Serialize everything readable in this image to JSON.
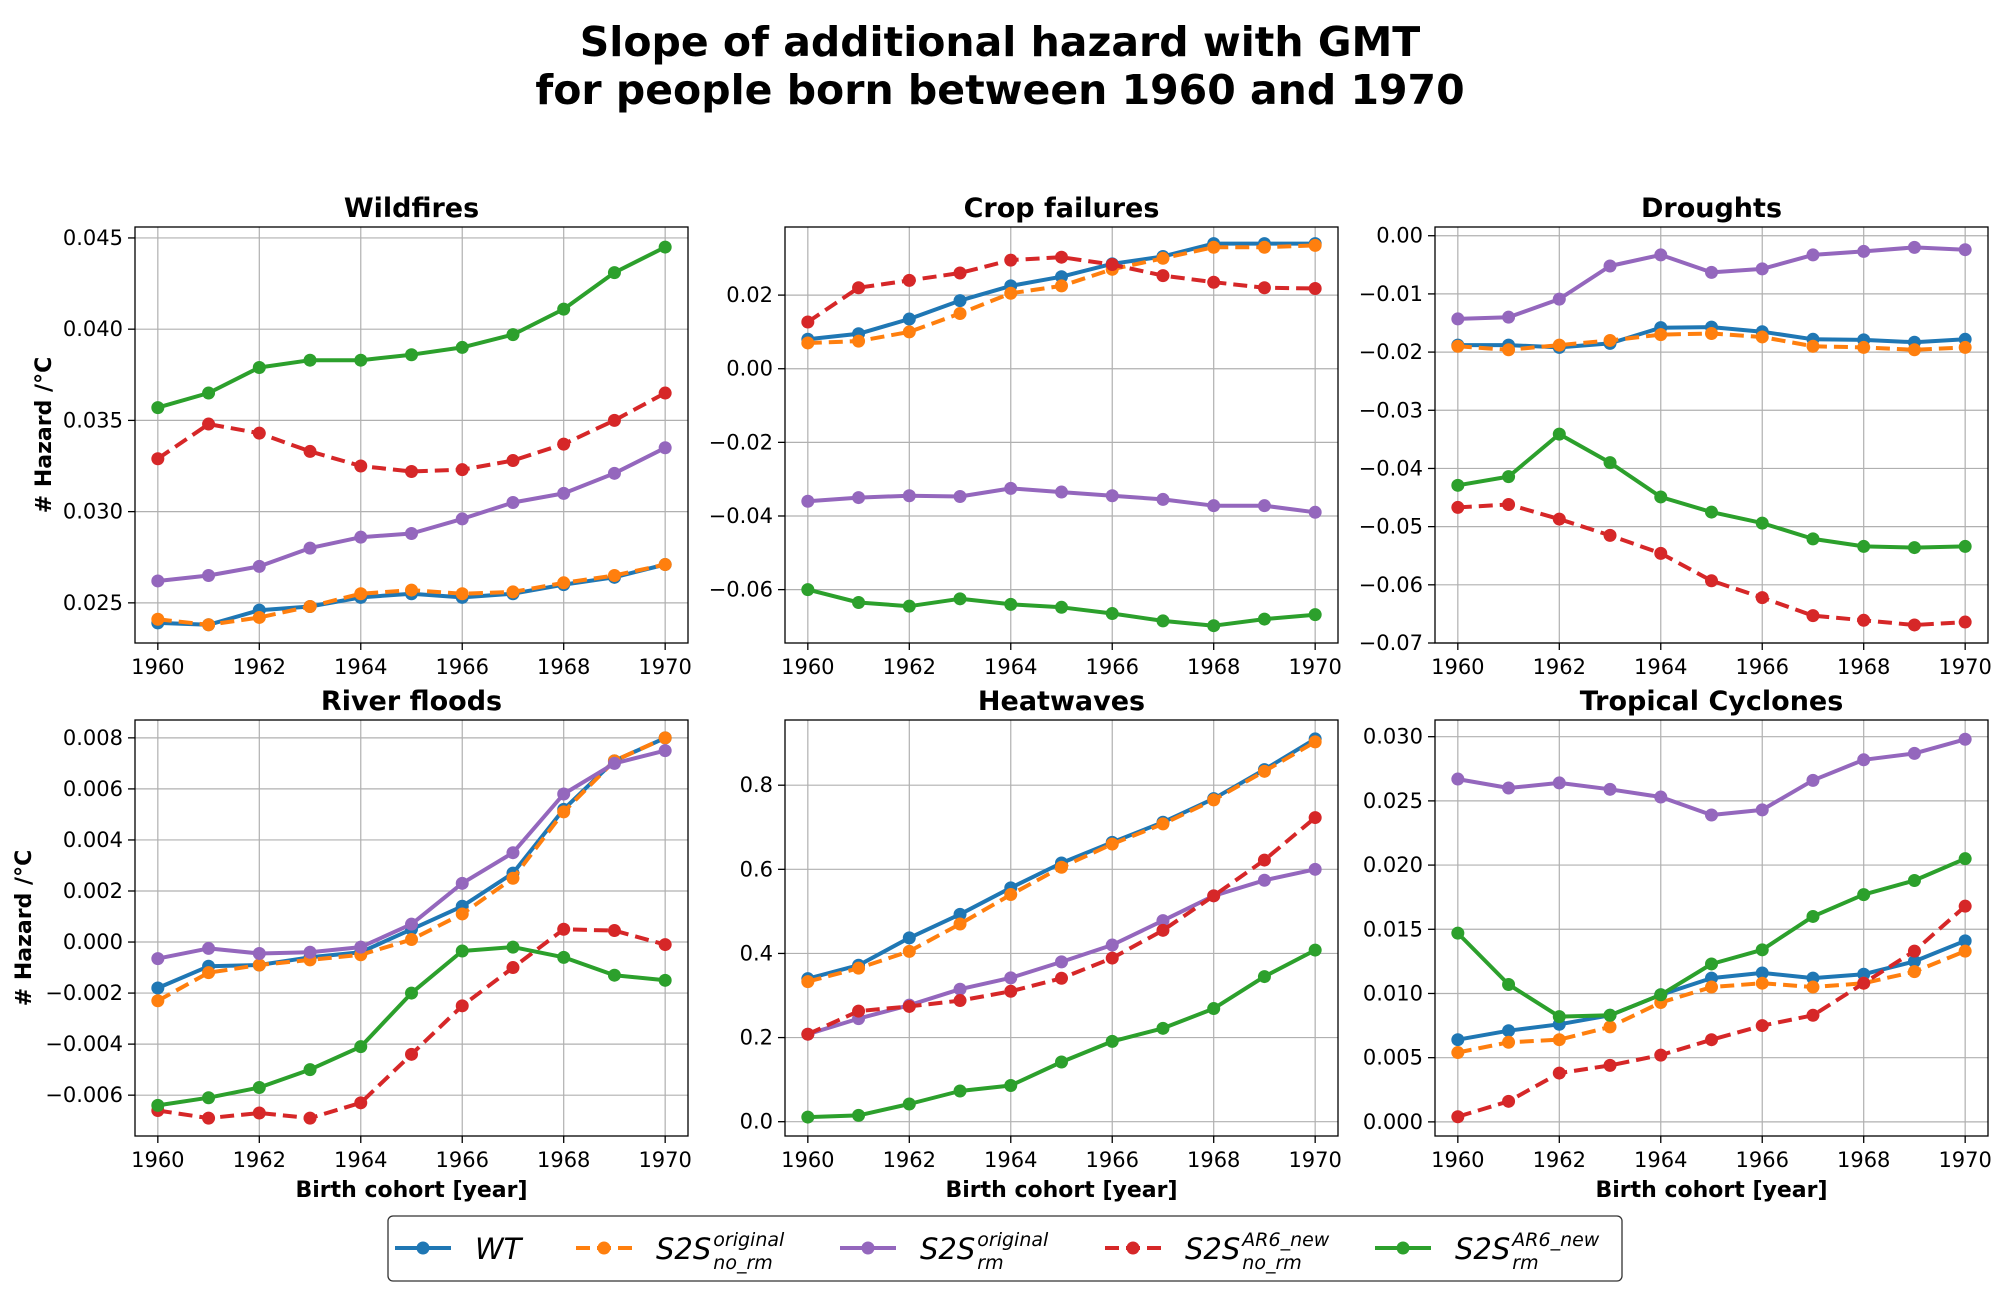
{
  "title_lines": [
    "Slope of additional hazard with GMT",
    "for people born between 1960 and 1970"
  ],
  "legend": [
    {
      "base": "S2S",
      "lead": "WT",
      "sup": "",
      "sub": "",
      "color": "#1f77b4",
      "dashed": false
    },
    {
      "lead": "",
      "base": "S2S",
      "sup": "original",
      "sub": "no_rm",
      "color": "#ff7f0e",
      "dashed": true
    },
    {
      "lead": "",
      "base": "S2S",
      "sup": "original",
      "sub": "rm",
      "color": "#9467bd",
      "dashed": false
    },
    {
      "lead": "",
      "base": "S2S",
      "sup": "AR6_new",
      "sub": "no_rm",
      "color": "#d62728",
      "dashed": true
    },
    {
      "lead": "",
      "base": "S2S",
      "sup": "AR6_new",
      "sub": "rm",
      "color": "#2ca02c",
      "dashed": false
    }
  ],
  "chart_data": [
    {
      "type": "line",
      "title": "Wildfires",
      "xlabel": "",
      "ylabel": "# Hazard /°C",
      "x": [
        1960,
        1961,
        1962,
        1963,
        1964,
        1965,
        1966,
        1967,
        1968,
        1969,
        1970
      ],
      "xlim": [
        1959.55,
        1970.45
      ],
      "xticks": [
        1960,
        1962,
        1964,
        1966,
        1968,
        1970
      ],
      "ylim": [
        0.0228,
        0.0456
      ],
      "yticks": [
        0.025,
        0.03,
        0.035,
        0.04,
        0.045
      ],
      "ytick_labels": [
        "0.025",
        "0.030",
        "0.035",
        "0.040",
        "0.045"
      ],
      "grid": true,
      "series": [
        {
          "key": "WT",
          "color": "#1f77b4",
          "dashed": false,
          "values": [
            0.0239,
            0.0238,
            0.0246,
            0.0248,
            0.0253,
            0.0255,
            0.0253,
            0.0255,
            0.026,
            0.0264,
            0.0271
          ]
        },
        {
          "key": "S2S_original_no_rm",
          "color": "#ff7f0e",
          "dashed": true,
          "values": [
            0.0241,
            0.0238,
            0.0242,
            0.0248,
            0.0255,
            0.0257,
            0.0255,
            0.0256,
            0.0261,
            0.0265,
            0.0271
          ]
        },
        {
          "key": "S2S_original_rm",
          "color": "#9467bd",
          "dashed": false,
          "values": [
            0.0262,
            0.0265,
            0.027,
            0.028,
            0.0286,
            0.0288,
            0.0296,
            0.0305,
            0.031,
            0.0321,
            0.0335
          ]
        },
        {
          "key": "S2S_AR6_new_no_rm",
          "color": "#d62728",
          "dashed": true,
          "values": [
            0.0329,
            0.0348,
            0.0343,
            0.0333,
            0.0325,
            0.0322,
            0.0323,
            0.0328,
            0.0337,
            0.035,
            0.0365
          ]
        },
        {
          "key": "S2S_AR6_new_rm",
          "color": "#2ca02c",
          "dashed": false,
          "values": [
            0.0357,
            0.0365,
            0.0379,
            0.0383,
            0.0383,
            0.0386,
            0.039,
            0.0397,
            0.0411,
            0.0431,
            0.0445
          ]
        }
      ]
    },
    {
      "type": "line",
      "title": "Crop failures",
      "xlabel": "",
      "ylabel": "",
      "x": [
        1960,
        1961,
        1962,
        1963,
        1964,
        1965,
        1966,
        1967,
        1968,
        1969,
        1970
      ],
      "xlim": [
        1959.55,
        1970.45
      ],
      "xticks": [
        1960,
        1962,
        1964,
        1966,
        1968,
        1970
      ],
      "ylim": [
        -0.0745,
        0.0385
      ],
      "yticks": [
        -0.06,
        -0.04,
        -0.02,
        0.0,
        0.02
      ],
      "ytick_labels": [
        "−0.06",
        "−0.04",
        "−0.02",
        "0.00",
        "0.02"
      ],
      "grid": true,
      "series": [
        {
          "key": "WT",
          "color": "#1f77b4",
          "dashed": false,
          "values": [
            0.008,
            0.0095,
            0.0135,
            0.0185,
            0.0225,
            0.025,
            0.0285,
            0.0305,
            0.034,
            0.034,
            0.034
          ]
        },
        {
          "key": "S2S_original_no_rm",
          "color": "#ff7f0e",
          "dashed": true,
          "values": [
            0.007,
            0.0075,
            0.01,
            0.015,
            0.0205,
            0.0225,
            0.027,
            0.03,
            0.033,
            0.033,
            0.0335
          ]
        },
        {
          "key": "S2S_original_rm",
          "color": "#9467bd",
          "dashed": false,
          "values": [
            -0.036,
            -0.035,
            -0.0345,
            -0.0347,
            -0.0325,
            -0.0335,
            -0.0345,
            -0.0355,
            -0.0372,
            -0.0372,
            -0.039
          ]
        },
        {
          "key": "S2S_AR6_new_no_rm",
          "color": "#d62728",
          "dashed": true,
          "values": [
            0.0127,
            0.022,
            0.024,
            0.026,
            0.0295,
            0.0303,
            0.0283,
            0.0253,
            0.0235,
            0.022,
            0.0218
          ]
        },
        {
          "key": "S2S_AR6_new_rm",
          "color": "#2ca02c",
          "dashed": false,
          "values": [
            -0.06,
            -0.0635,
            -0.0645,
            -0.0625,
            -0.064,
            -0.0648,
            -0.0665,
            -0.0685,
            -0.0698,
            -0.068,
            -0.0668
          ]
        }
      ]
    },
    {
      "type": "line",
      "title": "Droughts",
      "xlabel": "",
      "ylabel": "",
      "x": [
        1960,
        1961,
        1962,
        1963,
        1964,
        1965,
        1966,
        1967,
        1968,
        1969,
        1970
      ],
      "xlim": [
        1959.55,
        1970.45
      ],
      "xticks": [
        1960,
        1962,
        1964,
        1966,
        1968,
        1970
      ],
      "ylim": [
        -0.07,
        0.0015
      ],
      "yticks": [
        -0.07,
        -0.06,
        -0.05,
        -0.04,
        -0.03,
        -0.02,
        -0.01,
        0.0
      ],
      "ytick_labels": [
        "−0.07",
        "−0.06",
        "−0.05",
        "−0.04",
        "−0.03",
        "−0.02",
        "−0.01",
        "0.00"
      ],
      "grid": true,
      "series": [
        {
          "key": "WT",
          "color": "#1f77b4",
          "dashed": false,
          "values": [
            -0.0188,
            -0.0188,
            -0.0192,
            -0.0185,
            -0.0158,
            -0.0157,
            -0.0165,
            -0.0178,
            -0.0179,
            -0.0183,
            -0.0178
          ]
        },
        {
          "key": "S2S_original_no_rm",
          "color": "#ff7f0e",
          "dashed": true,
          "values": [
            -0.019,
            -0.0196,
            -0.0188,
            -0.018,
            -0.017,
            -0.0168,
            -0.0174,
            -0.019,
            -0.0192,
            -0.0196,
            -0.0192
          ]
        },
        {
          "key": "S2S_original_rm",
          "color": "#9467bd",
          "dashed": false,
          "values": [
            -0.0143,
            -0.014,
            -0.0109,
            -0.0052,
            -0.0033,
            -0.0063,
            -0.0057,
            -0.0033,
            -0.0027,
            -0.002,
            -0.0024
          ]
        },
        {
          "key": "S2S_AR6_new_no_rm",
          "color": "#d62728",
          "dashed": true,
          "values": [
            -0.0467,
            -0.0462,
            -0.0487,
            -0.0515,
            -0.0546,
            -0.0593,
            -0.0622,
            -0.0653,
            -0.0661,
            -0.0669,
            -0.0664
          ]
        },
        {
          "key": "S2S_AR6_new_rm",
          "color": "#2ca02c",
          "dashed": false,
          "values": [
            -0.0429,
            -0.0414,
            -0.0341,
            -0.039,
            -0.0449,
            -0.0475,
            -0.0494,
            -0.0521,
            -0.0534,
            -0.0536,
            -0.0534
          ]
        }
      ]
    },
    {
      "type": "line",
      "title": "River floods",
      "xlabel": "Birth cohort [year]",
      "ylabel": "# Hazard /°C",
      "x": [
        1960,
        1961,
        1962,
        1963,
        1964,
        1965,
        1966,
        1967,
        1968,
        1969,
        1970
      ],
      "xlim": [
        1959.55,
        1970.45
      ],
      "xticks": [
        1960,
        1962,
        1964,
        1966,
        1968,
        1970
      ],
      "ylim": [
        -0.0076,
        0.0087
      ],
      "yticks": [
        -0.006,
        -0.004,
        -0.002,
        0.0,
        0.002,
        0.004,
        0.006,
        0.008
      ],
      "ytick_labels": [
        "−0.006",
        "−0.004",
        "−0.002",
        "0.000",
        "0.002",
        "0.004",
        "0.006",
        "0.008"
      ],
      "grid": true,
      "series": [
        {
          "key": "WT",
          "color": "#1f77b4",
          "dashed": false,
          "values": [
            -0.0018,
            -0.00095,
            -0.0009,
            -0.0006,
            -0.0004,
            0.0005,
            0.0014,
            0.0027,
            0.0052,
            0.0071,
            0.008
          ]
        },
        {
          "key": "S2S_original_no_rm",
          "color": "#ff7f0e",
          "dashed": true,
          "values": [
            -0.0023,
            -0.0012,
            -0.0009,
            -0.0007,
            -0.0005,
            0.0001,
            0.0011,
            0.0025,
            0.0051,
            0.0071,
            0.008
          ]
        },
        {
          "key": "S2S_original_rm",
          "color": "#9467bd",
          "dashed": false,
          "values": [
            -0.00065,
            -0.00025,
            -0.00045,
            -0.0004,
            -0.0002,
            0.0007,
            0.0023,
            0.0035,
            0.0058,
            0.007,
            0.0075
          ]
        },
        {
          "key": "S2S_AR6_new_no_rm",
          "color": "#d62728",
          "dashed": true,
          "values": [
            -0.0066,
            -0.0069,
            -0.0067,
            -0.0069,
            -0.0063,
            -0.0044,
            -0.0025,
            -0.001,
            0.0005,
            0.00045,
            -0.0001
          ]
        },
        {
          "key": "S2S_AR6_new_rm",
          "color": "#2ca02c",
          "dashed": false,
          "values": [
            -0.0064,
            -0.0061,
            -0.0057,
            -0.005,
            -0.0041,
            -0.002,
            -0.00035,
            -0.0002,
            -0.0006,
            -0.0013,
            -0.0015
          ]
        }
      ]
    },
    {
      "type": "line",
      "title": "Heatwaves",
      "xlabel": "Birth cohort [year]",
      "ylabel": "",
      "x": [
        1960,
        1961,
        1962,
        1963,
        1964,
        1965,
        1966,
        1967,
        1968,
        1969,
        1970
      ],
      "xlim": [
        1959.55,
        1970.45
      ],
      "xticks": [
        1960,
        1962,
        1964,
        1966,
        1968,
        1970
      ],
      "ylim": [
        -0.034,
        0.955
      ],
      "yticks": [
        0.0,
        0.2,
        0.4,
        0.6,
        0.8
      ],
      "ytick_labels": [
        "0.0",
        "0.2",
        "0.4",
        "0.6",
        "0.8"
      ],
      "grid": true,
      "series": [
        {
          "key": "WT",
          "color": "#1f77b4",
          "dashed": false,
          "values": [
            0.34,
            0.372,
            0.437,
            0.493,
            0.556,
            0.615,
            0.664,
            0.712,
            0.768,
            0.837,
            0.91
          ]
        },
        {
          "key": "S2S_original_no_rm",
          "color": "#ff7f0e",
          "dashed": true,
          "values": [
            0.333,
            0.365,
            0.405,
            0.47,
            0.54,
            0.605,
            0.66,
            0.708,
            0.765,
            0.833,
            0.903
          ]
        },
        {
          "key": "S2S_original_rm",
          "color": "#9467bd",
          "dashed": false,
          "values": [
            0.208,
            0.245,
            0.277,
            0.315,
            0.342,
            0.38,
            0.42,
            0.478,
            0.537,
            0.574,
            0.6
          ]
        },
        {
          "key": "S2S_AR6_new_no_rm",
          "color": "#d62728",
          "dashed": true,
          "values": [
            0.208,
            0.263,
            0.274,
            0.288,
            0.31,
            0.341,
            0.389,
            0.455,
            0.537,
            0.622,
            0.723
          ]
        },
        {
          "key": "S2S_AR6_new_rm",
          "color": "#2ca02c",
          "dashed": false,
          "values": [
            0.011,
            0.015,
            0.042,
            0.073,
            0.086,
            0.142,
            0.191,
            0.222,
            0.269,
            0.345,
            0.408
          ]
        }
      ]
    },
    {
      "type": "line",
      "title": "Tropical Cyclones",
      "xlabel": "Birth cohort [year]",
      "ylabel": "",
      "x": [
        1960,
        1961,
        1962,
        1963,
        1964,
        1965,
        1966,
        1967,
        1968,
        1969,
        1970
      ],
      "xlim": [
        1959.55,
        1970.45
      ],
      "xticks": [
        1960,
        1962,
        1964,
        1966,
        1968,
        1970
      ],
      "ylim": [
        -0.0011,
        0.0313
      ],
      "yticks": [
        0.0,
        0.005,
        0.01,
        0.015,
        0.02,
        0.025,
        0.03
      ],
      "ytick_labels": [
        "0.000",
        "0.005",
        "0.010",
        "0.015",
        "0.020",
        "0.025",
        "0.030"
      ],
      "grid": true,
      "series": [
        {
          "key": "WT",
          "color": "#1f77b4",
          "dashed": false,
          "values": [
            0.0064,
            0.0071,
            0.0076,
            0.0083,
            0.0099,
            0.0112,
            0.0116,
            0.0112,
            0.0115,
            0.0125,
            0.0141
          ]
        },
        {
          "key": "S2S_original_no_rm",
          "color": "#ff7f0e",
          "dashed": true,
          "values": [
            0.0054,
            0.0062,
            0.0064,
            0.0074,
            0.0093,
            0.0105,
            0.0108,
            0.0105,
            0.0108,
            0.0117,
            0.0133
          ]
        },
        {
          "key": "S2S_original_rm",
          "color": "#9467bd",
          "dashed": false,
          "values": [
            0.0267,
            0.026,
            0.0264,
            0.0259,
            0.0253,
            0.0239,
            0.0243,
            0.0266,
            0.0282,
            0.0287,
            0.0298
          ]
        },
        {
          "key": "S2S_AR6_new_no_rm",
          "color": "#d62728",
          "dashed": true,
          "values": [
            0.0004,
            0.0016,
            0.0038,
            0.0044,
            0.0052,
            0.0064,
            0.0075,
            0.0083,
            0.0108,
            0.0133,
            0.0168
          ]
        },
        {
          "key": "S2S_AR6_new_rm",
          "color": "#2ca02c",
          "dashed": false,
          "values": [
            0.0147,
            0.0107,
            0.0082,
            0.0083,
            0.0099,
            0.0123,
            0.0134,
            0.016,
            0.0177,
            0.0188,
            0.0205
          ]
        }
      ]
    }
  ]
}
